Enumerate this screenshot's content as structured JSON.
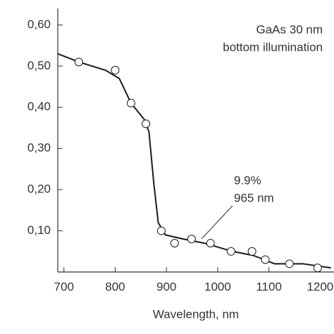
{
  "chart_data": {
    "type": "line",
    "xlabel": "Wavelength, nm",
    "annotations": [
      "GaAs 30 nm",
      "bottom illumination",
      "9.9%",
      "965 nm"
    ],
    "xlim": [
      688,
      1227
    ],
    "ylim": [
      0,
      0.64
    ],
    "xticks": [
      700,
      800,
      900,
      1000,
      1100,
      1200
    ],
    "yticks": [
      {
        "value": 0.1,
        "label": "0,10"
      },
      {
        "value": 0.2,
        "label": "0,20"
      },
      {
        "value": 0.3,
        "label": "0,30"
      },
      {
        "value": 0.4,
        "label": "0,40"
      },
      {
        "value": 0.5,
        "label": "0,50"
      },
      {
        "value": 0.6,
        "label": "0,60"
      }
    ],
    "series": [
      {
        "color": "#1a1a1a",
        "markers": false,
        "x": [
          688,
          729,
          781,
          808,
          831,
          857,
          866,
          875,
          884,
          898,
          933,
          974,
          1029,
          1070,
          1111,
          1166,
          1221
        ],
        "values": [
          0.53,
          0.51,
          0.49,
          0.47,
          0.41,
          0.37,
          0.34,
          0.22,
          0.12,
          0.09,
          0.08,
          0.07,
          0.05,
          0.04,
          0.02,
          0.02,
          0.01
        ]
      },
      {
        "color": "#1a1a1a",
        "markers": true,
        "x": [
          729,
          800,
          831,
          860,
          890,
          916,
          949,
          986,
          1026,
          1067,
          1093,
          1140,
          1195
        ],
        "values": [
          0.51,
          0.49,
          0.41,
          0.36,
          0.1,
          0.07,
          0.08,
          0.07,
          0.05,
          0.05,
          0.03,
          0.02,
          0.01
        ]
      }
    ]
  }
}
